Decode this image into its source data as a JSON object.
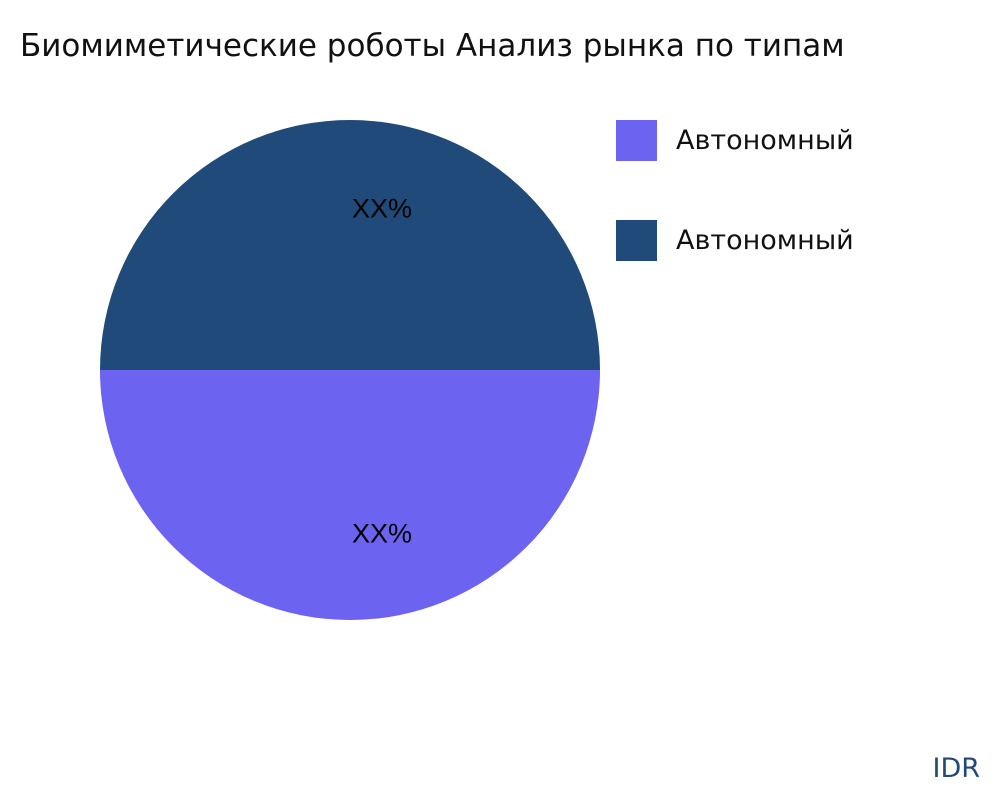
{
  "chart_data": {
    "type": "pie",
    "title": "Биомиметические роботы Анализ рынка по типам",
    "slices": [
      {
        "name": "Автономный",
        "value": 50,
        "label": "XX%",
        "color": "#6c63f0"
      },
      {
        "name": "Автономный",
        "value": 50,
        "label": "XX%",
        "color": "#1f4a7a"
      }
    ],
    "legend_position": "right"
  },
  "watermark": "IDR"
}
